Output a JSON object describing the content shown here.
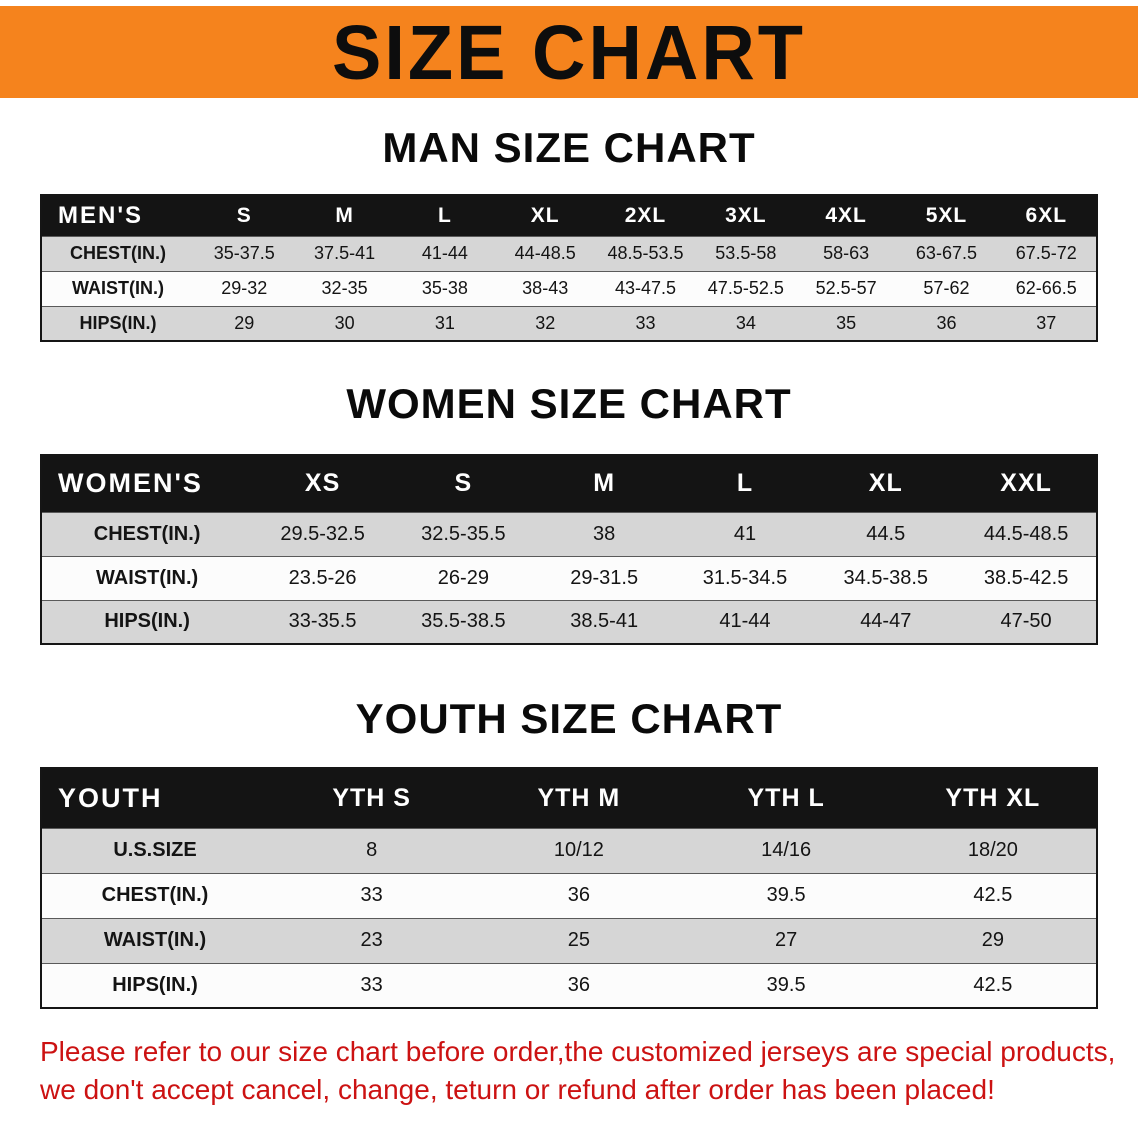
{
  "banner": {
    "title": "SIZE CHART",
    "bg_color": "#F5831D",
    "text_color": "#0D0D0D"
  },
  "theme": {
    "table_header_bg": "#141414",
    "table_header_text": "#FFFFFF",
    "stripe_gray": "#D6D6D6",
    "stripe_white": "#FCFCFC",
    "disclaimer_red": "#CC1212"
  },
  "sections": [
    {
      "id": "men",
      "heading": "MAN SIZE CHART",
      "table": {
        "name": "men-size-table",
        "header": [
          "MEN'S",
          "S",
          "M",
          "L",
          "XL",
          "2XL",
          "3XL",
          "4XL",
          "5XL",
          "6XL"
        ],
        "rows": [
          {
            "label": "CHEST(IN.)",
            "values": [
              "35-37.5",
              "37.5-41",
              "41-44",
              "44-48.5",
              "48.5-53.5",
              "53.5-58",
              "58-63",
              "63-67.5",
              "67.5-72"
            ]
          },
          {
            "label": "WAIST(IN.)",
            "values": [
              "29-32",
              "32-35",
              "35-38",
              "38-43",
              "43-47.5",
              "47.5-52.5",
              "52.5-57",
              "57-62",
              "62-66.5"
            ]
          },
          {
            "label": "HIPS(IN.)",
            "values": [
              "29",
              "30",
              "31",
              "32",
              "33",
              "34",
              "35",
              "36",
              "37"
            ]
          }
        ]
      }
    },
    {
      "id": "women",
      "heading": "WOMEN SIZE CHART",
      "table": {
        "name": "women-size-table",
        "header": [
          "WOMEN'S",
          "XS",
          "S",
          "M",
          "L",
          "XL",
          "XXL"
        ],
        "rows": [
          {
            "label": "CHEST(IN.)",
            "values": [
              "29.5-32.5",
              "32.5-35.5",
              "38",
              "41",
              "44.5",
              "44.5-48.5"
            ]
          },
          {
            "label": "WAIST(IN.)",
            "values": [
              "23.5-26",
              "26-29",
              "29-31.5",
              "31.5-34.5",
              "34.5-38.5",
              "38.5-42.5"
            ]
          },
          {
            "label": "HIPS(IN.)",
            "values": [
              "33-35.5",
              "35.5-38.5",
              "38.5-41",
              "41-44",
              "44-47",
              "47-50"
            ]
          }
        ]
      }
    },
    {
      "id": "youth",
      "heading": "YOUTH SIZE CHART",
      "table": {
        "name": "youth-size-table",
        "header": [
          "YOUTH",
          "YTH S",
          "YTH M",
          "YTH L",
          "YTH XL"
        ],
        "rows": [
          {
            "label": "U.S.SIZE",
            "values": [
              "8",
              "10/12",
              "14/16",
              "18/20"
            ]
          },
          {
            "label": "CHEST(IN.)",
            "values": [
              "33",
              "36",
              "39.5",
              "42.5"
            ]
          },
          {
            "label": "WAIST(IN.)",
            "values": [
              "23",
              "25",
              "27",
              "29"
            ]
          },
          {
            "label": "HIPS(IN.)",
            "values": [
              "33",
              "36",
              "39.5",
              "42.5"
            ]
          }
        ]
      }
    }
  ],
  "disclaimer": {
    "lines": [
      "Please refer to our size chart before order,the customized jerseys are special products,",
      "we don't accept cancel, change, teturn or refund after order has been placed!"
    ]
  }
}
